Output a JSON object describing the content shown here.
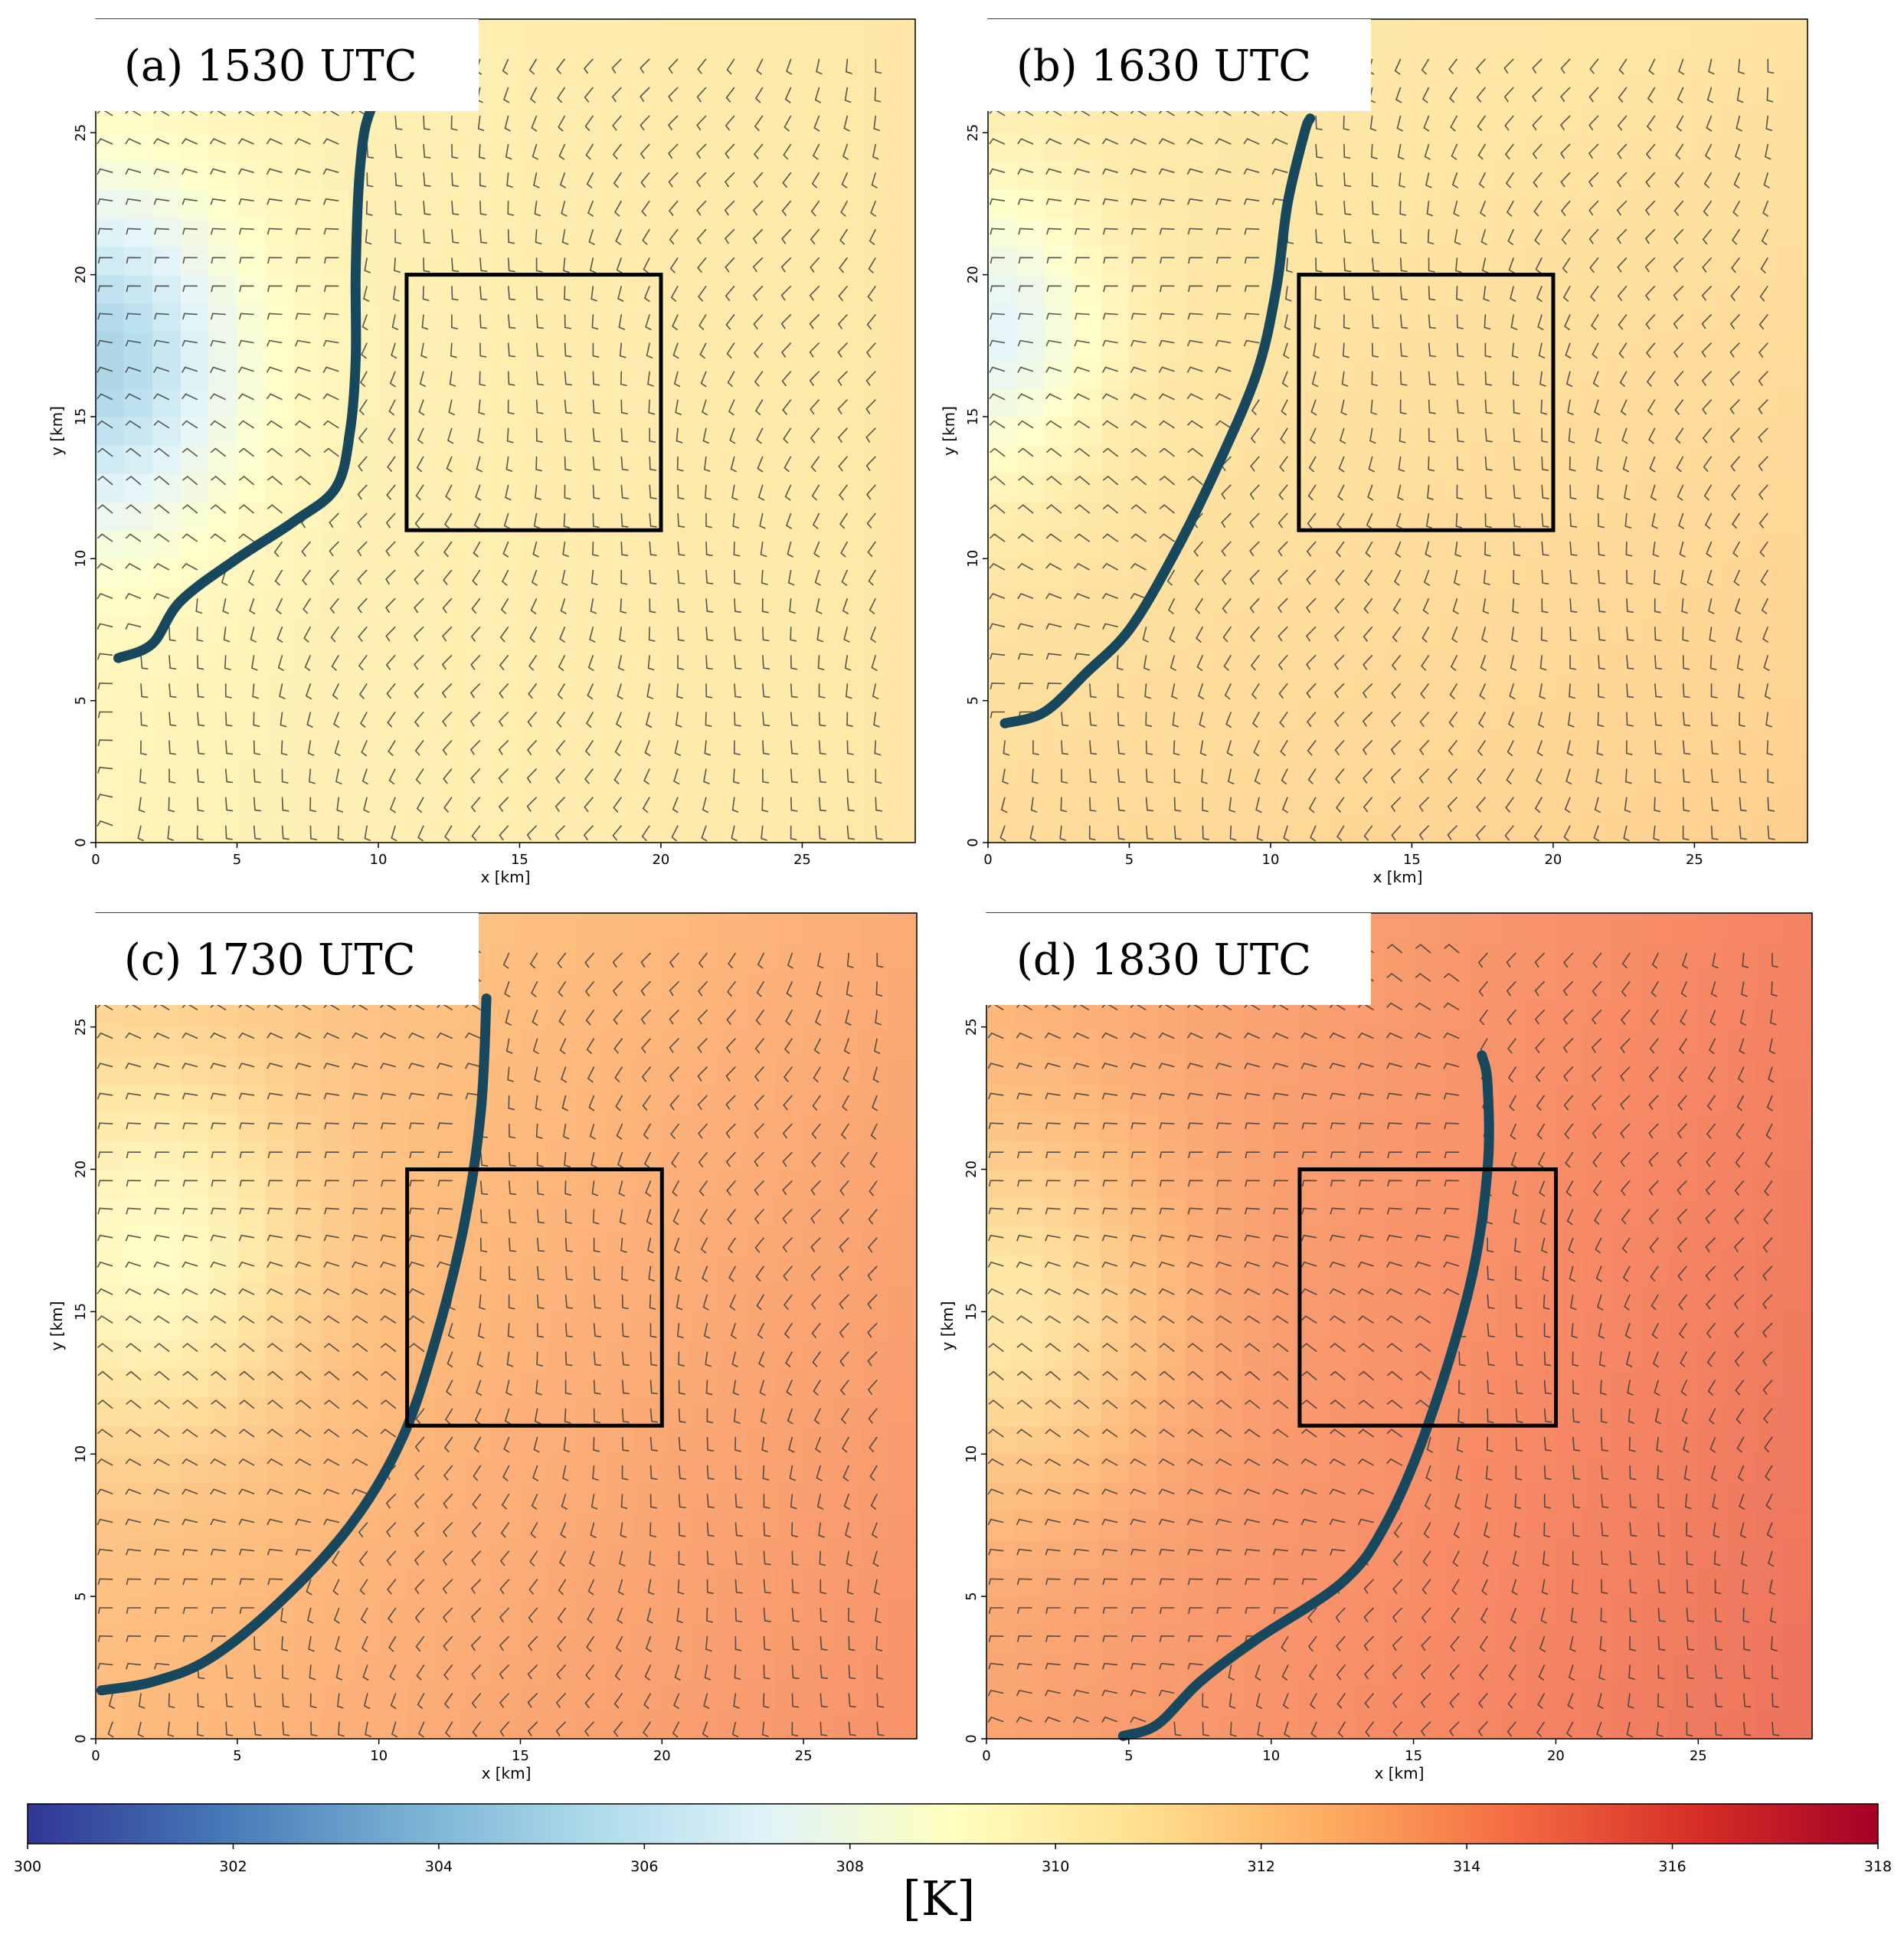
{
  "chart_data": {
    "type": "heatmap",
    "panels": [
      {
        "label": "(a) 1530 UTC",
        "xlabel": "x [km]",
        "ylabel": "y [km]",
        "xlim": [
          0,
          29
        ],
        "ylim": [
          0,
          29
        ],
        "xticks": [
          "0",
          "5",
          "10",
          "15",
          "20",
          "25"
        ],
        "yticks": [
          "0",
          "5",
          "10",
          "15",
          "20",
          "25"
        ],
        "box": {
          "x0": 11,
          "x1": 20,
          "y0": 11,
          "y1": 20
        },
        "front": [
          [
            0.8,
            6.5
          ],
          [
            2,
            7.0
          ],
          [
            3,
            8.5
          ],
          [
            5,
            10.0
          ],
          [
            7,
            11.3
          ],
          [
            8.5,
            12.5
          ],
          [
            9.0,
            14.5
          ],
          [
            9.2,
            17
          ],
          [
            9.2,
            20
          ],
          [
            9.3,
            23
          ],
          [
            9.5,
            25
          ],
          [
            9.8,
            26
          ]
        ],
        "temp_model": {
          "base": 309.8,
          "gx": 0.03,
          "gy": 0,
          "cx": 0,
          "cy": 17,
          "cool": 5,
          "sx": 5,
          "sy": 6
        }
      },
      {
        "label": "(b) 1630 UTC",
        "xlabel": "x [km]",
        "ylabel": "y [km]",
        "xlim": [
          0,
          29
        ],
        "ylim": [
          0,
          29
        ],
        "xticks": [
          "0",
          "5",
          "10",
          "15",
          "20",
          "25"
        ],
        "yticks": [
          "0",
          "5",
          "10",
          "15",
          "20",
          "25"
        ],
        "box": {
          "x0": 11,
          "x1": 20,
          "y0": 11,
          "y1": 20
        },
        "front": [
          [
            0.6,
            4.2
          ],
          [
            2,
            4.6
          ],
          [
            3.5,
            6
          ],
          [
            5,
            7.5
          ],
          [
            6.5,
            10
          ],
          [
            8,
            13
          ],
          [
            9.5,
            16.5
          ],
          [
            10.2,
            19.5
          ],
          [
            10.6,
            22.5
          ],
          [
            11.2,
            25
          ],
          [
            11.4,
            25.5
          ]
        ],
        "temp_model": {
          "base": 311.2,
          "gx": 0.02,
          "gy": -0.03,
          "cx": 0,
          "cy": 18,
          "cool": 3.5,
          "sx": 4,
          "sy": 5
        }
      },
      {
        "label": "(c) 1730 UTC",
        "xlabel": "x [km]",
        "ylabel": "y [km]",
        "xlim": [
          0,
          29
        ],
        "ylim": [
          0,
          29
        ],
        "xticks": [
          "0",
          "5",
          "10",
          "15",
          "20",
          "25"
        ],
        "yticks": [
          "0",
          "5",
          "10",
          "15",
          "20",
          "25"
        ],
        "box": {
          "x0": 11,
          "x1": 20,
          "y0": 11,
          "y1": 20
        },
        "front": [
          [
            0.2,
            1.7
          ],
          [
            2,
            2.0
          ],
          [
            4,
            2.8
          ],
          [
            6.5,
            4.8
          ],
          [
            9,
            7.5
          ],
          [
            10.8,
            10.5
          ],
          [
            12,
            14
          ],
          [
            13,
            18
          ],
          [
            13.6,
            22
          ],
          [
            13.8,
            26
          ]
        ],
        "temp_model": {
          "base": 312.6,
          "gx": 0.05,
          "gy": -0.03,
          "cx": 2,
          "cy": 17,
          "cool": 3,
          "sx": 5,
          "sy": 6
        }
      },
      {
        "label": "(d) 1830 UTC",
        "xlabel": "x [km]",
        "ylabel": "y [km]",
        "xlim": [
          0,
          29
        ],
        "ylim": [
          0,
          29
        ],
        "xticks": [
          "0",
          "5",
          "10",
          "15",
          "20",
          "25"
        ],
        "yticks": [
          "0",
          "5",
          "10",
          "15",
          "20",
          "25"
        ],
        "box": {
          "x0": 11,
          "x1": 20,
          "y0": 11,
          "y1": 20
        },
        "front": [
          [
            4.8,
            0.1
          ],
          [
            6,
            0.5
          ],
          [
            7.5,
            2
          ],
          [
            9.5,
            3.5
          ],
          [
            12.5,
            5.5
          ],
          [
            14,
            7.5
          ],
          [
            15.5,
            11
          ],
          [
            17,
            16
          ],
          [
            17.6,
            20
          ],
          [
            17.6,
            23
          ],
          [
            17.4,
            24
          ]
        ],
        "temp_model": {
          "base": 313.4,
          "gx": 0.06,
          "gy": -0.02,
          "cx": 1,
          "cy": 15,
          "cool": 2.5,
          "sx": 5,
          "sy": 6
        }
      }
    ],
    "colorbar": {
      "min": 300,
      "max": 318,
      "ticks": [
        "300",
        "302",
        "304",
        "306",
        "308",
        "310",
        "312",
        "314",
        "316",
        "318"
      ],
      "label": "[K]",
      "colormap": "RdYlBu_r"
    },
    "colors": {
      "front_line": "#17485e",
      "box": "#000000",
      "barb": "#3b3b3b"
    }
  }
}
